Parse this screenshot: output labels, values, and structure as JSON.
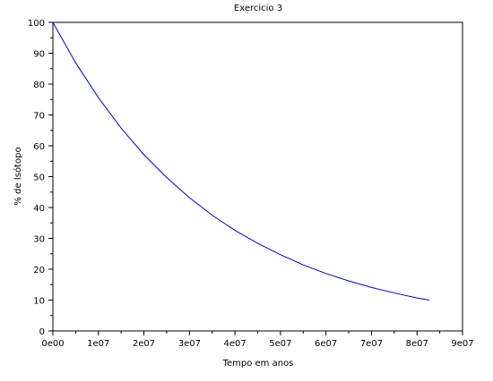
{
  "chart_data": {
    "type": "line",
    "title": "Exercicio 3",
    "xlabel": "Tempo em anos",
    "ylabel": "% de Isótopo",
    "xlim": [
      0,
      90000000
    ],
    "ylim": [
      0,
      100
    ],
    "x_ticks": [
      {
        "value": 0,
        "label": "0e00"
      },
      {
        "value": 10000000,
        "label": "1e07"
      },
      {
        "value": 20000000,
        "label": "2e07"
      },
      {
        "value": 30000000,
        "label": "3e07"
      },
      {
        "value": 40000000,
        "label": "4e07"
      },
      {
        "value": 50000000,
        "label": "5e07"
      },
      {
        "value": 60000000,
        "label": "6e07"
      },
      {
        "value": 70000000,
        "label": "7e07"
      },
      {
        "value": 80000000,
        "label": "8e07"
      },
      {
        "value": 90000000,
        "label": "9e07"
      }
    ],
    "y_ticks": [
      {
        "value": 0,
        "label": "0"
      },
      {
        "value": 10,
        "label": "10"
      },
      {
        "value": 20,
        "label": "20"
      },
      {
        "value": 30,
        "label": "30"
      },
      {
        "value": 40,
        "label": "40"
      },
      {
        "value": 50,
        "label": "50"
      },
      {
        "value": 60,
        "label": "60"
      },
      {
        "value": 70,
        "label": "70"
      },
      {
        "value": 80,
        "label": "80"
      },
      {
        "value": 90,
        "label": "90"
      },
      {
        "value": 100,
        "label": "100"
      }
    ],
    "grid": false,
    "legend": "none",
    "series": [
      {
        "color": "#0000cc",
        "x": [
          0,
          5000000,
          10000000,
          15000000,
          20000000,
          25000000,
          30000000,
          35000000,
          40000000,
          45000000,
          50000000,
          55000000,
          60000000,
          65000000,
          70000000,
          75000000,
          80000000,
          82700000
        ],
        "y": [
          100,
          86.9,
          75.6,
          65.7,
          57.1,
          49.7,
          43.2,
          37.5,
          32.6,
          28.4,
          24.7,
          21.4,
          18.6,
          16.2,
          14.1,
          12.3,
          10.7,
          10.0
        ]
      }
    ]
  }
}
